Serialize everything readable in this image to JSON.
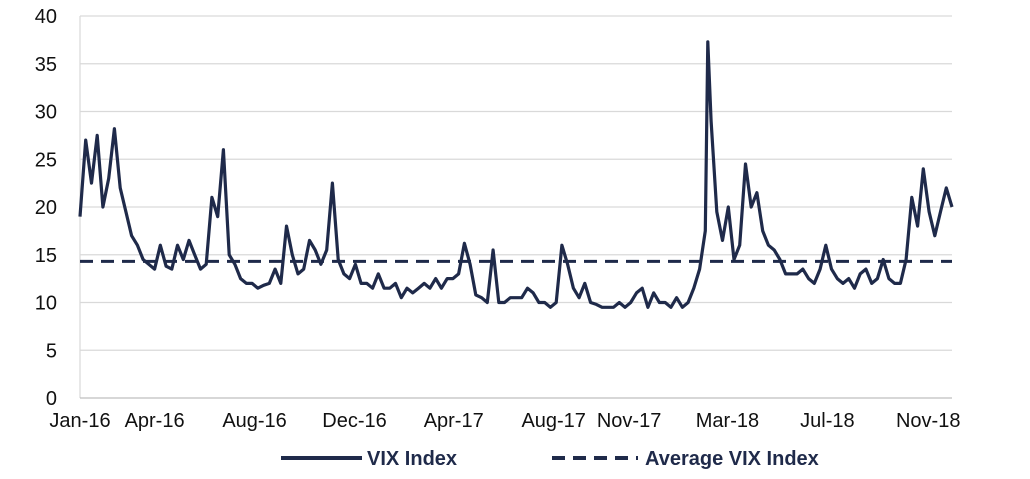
{
  "chart_data": {
    "type": "line",
    "x_start": "2016-01-01",
    "x_end": "2018-11-30",
    "ylim": [
      0,
      40
    ],
    "yticks": [
      0,
      5,
      10,
      15,
      20,
      25,
      30,
      35,
      40
    ],
    "xticks": [
      {
        "label": "Jan-16",
        "date": "2016-01-01"
      },
      {
        "label": "Apr-16",
        "date": "2016-04-01"
      },
      {
        "label": "Aug-16",
        "date": "2016-08-01"
      },
      {
        "label": "Dec-16",
        "date": "2016-12-01"
      },
      {
        "label": "Apr-17",
        "date": "2017-04-01"
      },
      {
        "label": "Aug-17",
        "date": "2017-08-01"
      },
      {
        "label": "Nov-17",
        "date": "2017-11-01"
      },
      {
        "label": "Mar-18",
        "date": "2018-03-01"
      },
      {
        "label": "Jul-18",
        "date": "2018-07-01"
      },
      {
        "label": "Nov-18",
        "date": "2018-11-01"
      }
    ],
    "grid": true,
    "legend_position": "bottom",
    "series": [
      {
        "name": "VIX Index",
        "color": "#1f2a4a",
        "style": "solid",
        "points": [
          [
            "2016-01-01",
            19
          ],
          [
            "2016-01-08",
            27
          ],
          [
            "2016-01-15",
            22.5
          ],
          [
            "2016-01-22",
            27.5
          ],
          [
            "2016-01-29",
            20
          ],
          [
            "2016-02-05",
            23
          ],
          [
            "2016-02-12",
            28.2
          ],
          [
            "2016-02-19",
            22
          ],
          [
            "2016-02-26",
            19.5
          ],
          [
            "2016-03-04",
            17
          ],
          [
            "2016-03-11",
            16
          ],
          [
            "2016-03-18",
            14.5
          ],
          [
            "2016-03-25",
            14
          ],
          [
            "2016-04-01",
            13.5
          ],
          [
            "2016-04-08",
            16
          ],
          [
            "2016-04-15",
            13.8
          ],
          [
            "2016-04-22",
            13.5
          ],
          [
            "2016-04-29",
            16
          ],
          [
            "2016-05-06",
            14.5
          ],
          [
            "2016-05-13",
            16.5
          ],
          [
            "2016-05-20",
            15
          ],
          [
            "2016-05-27",
            13.5
          ],
          [
            "2016-06-03",
            14
          ],
          [
            "2016-06-10",
            21
          ],
          [
            "2016-06-17",
            19
          ],
          [
            "2016-06-24",
            26
          ],
          [
            "2016-07-01",
            15
          ],
          [
            "2016-07-08",
            14
          ],
          [
            "2016-07-15",
            12.5
          ],
          [
            "2016-07-22",
            12
          ],
          [
            "2016-07-29",
            12
          ],
          [
            "2016-08-05",
            11.5
          ],
          [
            "2016-08-12",
            11.8
          ],
          [
            "2016-08-19",
            12
          ],
          [
            "2016-08-26",
            13.5
          ],
          [
            "2016-09-02",
            12
          ],
          [
            "2016-09-09",
            18
          ],
          [
            "2016-09-16",
            15
          ],
          [
            "2016-09-23",
            13
          ],
          [
            "2016-09-30",
            13.5
          ],
          [
            "2016-10-07",
            16.5
          ],
          [
            "2016-10-14",
            15.5
          ],
          [
            "2016-10-21",
            14
          ],
          [
            "2016-10-28",
            15.5
          ],
          [
            "2016-11-04",
            22.5
          ],
          [
            "2016-11-11",
            14.5
          ],
          [
            "2016-11-18",
            13
          ],
          [
            "2016-11-25",
            12.5
          ],
          [
            "2016-12-02",
            14
          ],
          [
            "2016-12-09",
            12
          ],
          [
            "2016-12-16",
            12
          ],
          [
            "2016-12-23",
            11.5
          ],
          [
            "2016-12-30",
            13
          ],
          [
            "2017-01-06",
            11.5
          ],
          [
            "2017-01-13",
            11.5
          ],
          [
            "2017-01-20",
            12
          ],
          [
            "2017-01-27",
            10.5
          ],
          [
            "2017-02-03",
            11.5
          ],
          [
            "2017-02-10",
            11
          ],
          [
            "2017-02-17",
            11.5
          ],
          [
            "2017-02-24",
            12
          ],
          [
            "2017-03-03",
            11.5
          ],
          [
            "2017-03-10",
            12.5
          ],
          [
            "2017-03-17",
            11.5
          ],
          [
            "2017-03-24",
            12.5
          ],
          [
            "2017-03-31",
            12.5
          ],
          [
            "2017-04-07",
            13
          ],
          [
            "2017-04-14",
            16.2
          ],
          [
            "2017-04-21",
            14
          ],
          [
            "2017-04-28",
            10.8
          ],
          [
            "2017-05-05",
            10.5
          ],
          [
            "2017-05-12",
            10
          ],
          [
            "2017-05-19",
            15.5
          ],
          [
            "2017-05-26",
            10
          ],
          [
            "2017-06-02",
            10
          ],
          [
            "2017-06-09",
            10.5
          ],
          [
            "2017-06-16",
            10.5
          ],
          [
            "2017-06-23",
            10.5
          ],
          [
            "2017-06-30",
            11.5
          ],
          [
            "2017-07-07",
            11
          ],
          [
            "2017-07-14",
            10
          ],
          [
            "2017-07-21",
            10
          ],
          [
            "2017-07-28",
            9.5
          ],
          [
            "2017-08-04",
            10
          ],
          [
            "2017-08-11",
            16
          ],
          [
            "2017-08-18",
            14
          ],
          [
            "2017-08-25",
            11.5
          ],
          [
            "2017-09-01",
            10.5
          ],
          [
            "2017-09-08",
            12
          ],
          [
            "2017-09-15",
            10
          ],
          [
            "2017-09-22",
            9.8
          ],
          [
            "2017-09-29",
            9.5
          ],
          [
            "2017-10-06",
            9.5
          ],
          [
            "2017-10-13",
            9.5
          ],
          [
            "2017-10-20",
            10
          ],
          [
            "2017-10-27",
            9.5
          ],
          [
            "2017-11-03",
            10
          ],
          [
            "2017-11-10",
            11
          ],
          [
            "2017-11-17",
            11.5
          ],
          [
            "2017-11-24",
            9.5
          ],
          [
            "2017-12-01",
            11
          ],
          [
            "2017-12-08",
            10
          ],
          [
            "2017-12-15",
            10
          ],
          [
            "2017-12-22",
            9.5
          ],
          [
            "2017-12-29",
            10.5
          ],
          [
            "2018-01-05",
            9.5
          ],
          [
            "2018-01-12",
            10
          ],
          [
            "2018-01-19",
            11.5
          ],
          [
            "2018-01-26",
            13.5
          ],
          [
            "2018-02-02",
            17.5
          ],
          [
            "2018-02-05",
            37.3
          ],
          [
            "2018-02-09",
            29
          ],
          [
            "2018-02-16",
            19.5
          ],
          [
            "2018-02-23",
            16.5
          ],
          [
            "2018-03-02",
            20
          ],
          [
            "2018-03-09",
            14.5
          ],
          [
            "2018-03-16",
            16
          ],
          [
            "2018-03-23",
            24.5
          ],
          [
            "2018-03-30",
            20
          ],
          [
            "2018-04-06",
            21.5
          ],
          [
            "2018-04-13",
            17.5
          ],
          [
            "2018-04-20",
            16
          ],
          [
            "2018-04-27",
            15.5
          ],
          [
            "2018-05-04",
            14.5
          ],
          [
            "2018-05-11",
            13
          ],
          [
            "2018-05-18",
            13
          ],
          [
            "2018-05-25",
            13
          ],
          [
            "2018-06-01",
            13.5
          ],
          [
            "2018-06-08",
            12.5
          ],
          [
            "2018-06-15",
            12
          ],
          [
            "2018-06-22",
            13.5
          ],
          [
            "2018-06-29",
            16
          ],
          [
            "2018-07-06",
            13.5
          ],
          [
            "2018-07-13",
            12.5
          ],
          [
            "2018-07-20",
            12
          ],
          [
            "2018-07-27",
            12.5
          ],
          [
            "2018-08-03",
            11.5
          ],
          [
            "2018-08-10",
            13
          ],
          [
            "2018-08-17",
            13.5
          ],
          [
            "2018-08-24",
            12
          ],
          [
            "2018-08-31",
            12.5
          ],
          [
            "2018-09-07",
            14.5
          ],
          [
            "2018-09-14",
            12.5
          ],
          [
            "2018-09-21",
            12
          ],
          [
            "2018-09-28",
            12
          ],
          [
            "2018-10-05",
            14.5
          ],
          [
            "2018-10-12",
            21
          ],
          [
            "2018-10-19",
            18
          ],
          [
            "2018-10-26",
            24
          ],
          [
            "2018-11-02",
            19.5
          ],
          [
            "2018-11-09",
            17
          ],
          [
            "2018-11-16",
            19.5
          ],
          [
            "2018-11-23",
            22
          ],
          [
            "2018-11-30",
            20
          ]
        ]
      },
      {
        "name": "Average VIX Index",
        "color": "#1f2a4a",
        "style": "dashed",
        "points": [
          [
            "2016-01-01",
            14.3
          ],
          [
            "2018-11-30",
            14.3
          ]
        ]
      }
    ]
  }
}
